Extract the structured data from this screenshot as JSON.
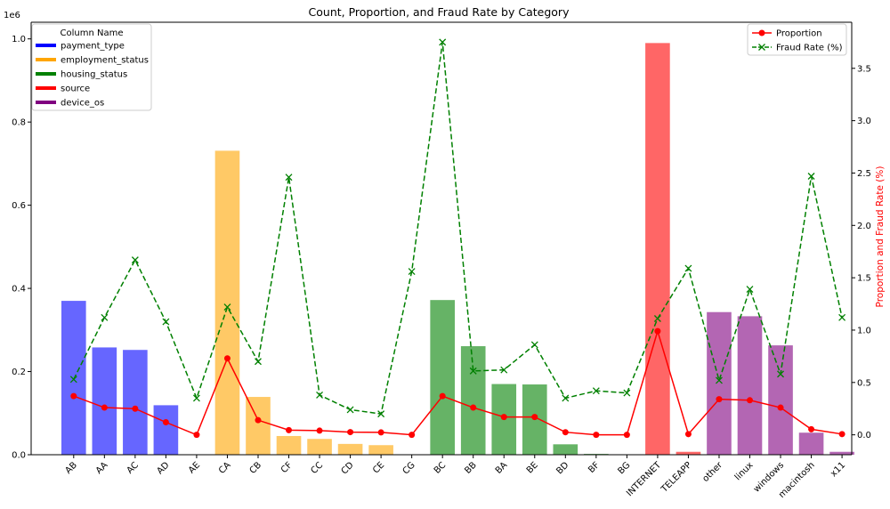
{
  "chart_data": {
    "type": "bar",
    "title": "Count, Proportion, and Fraud Rate by Category",
    "xlabel": "",
    "ylabel": "",
    "y2label": "Proportion and Fraud Rate (%)",
    "y_multiplier_label": "1e6",
    "ylim": [
      0,
      1.04
    ],
    "y_ticks": [
      0.0,
      0.2,
      0.4,
      0.6,
      0.8,
      1.0
    ],
    "y2lim": [
      -0.19,
      3.94
    ],
    "y2_ticks": [
      0.0,
      0.5,
      1.0,
      1.5,
      2.0,
      2.5,
      3.0,
      3.5
    ],
    "categories": [
      "AB",
      "AA",
      "AC",
      "AD",
      "AE",
      "CA",
      "CB",
      "CF",
      "CC",
      "CD",
      "CE",
      "CG",
      "BC",
      "BB",
      "BA",
      "BE",
      "BD",
      "BF",
      "BG",
      "INTERNET",
      "TELEAPP",
      "other",
      "linux",
      "windows",
      "macintosh",
      "x11"
    ],
    "bar_groups": [
      0,
      0,
      0,
      0,
      0,
      1,
      1,
      1,
      1,
      1,
      1,
      1,
      2,
      2,
      2,
      2,
      2,
      2,
      2,
      3,
      3,
      4,
      4,
      4,
      4,
      4
    ],
    "counts": [
      0.37,
      0.258,
      0.252,
      0.119,
      0.0,
      0.731,
      0.139,
      0.045,
      0.038,
      0.026,
      0.023,
      0.001,
      0.372,
      0.261,
      0.17,
      0.169,
      0.025,
      0.002,
      0.0,
      0.99,
      0.007,
      0.343,
      0.333,
      0.263,
      0.053,
      0.007
    ],
    "legend_bars": {
      "title": "Column Name",
      "entries": [
        {
          "name": "payment_type",
          "color": "#0000ff"
        },
        {
          "name": "employment_status",
          "color": "#ffa500"
        },
        {
          "name": "housing_status",
          "color": "#008000"
        },
        {
          "name": "source",
          "color": "#ff0000"
        },
        {
          "name": "device_os",
          "color": "#800080"
        }
      ],
      "placement": "top-left"
    },
    "series": [
      {
        "name": "Proportion",
        "color": "#ff0000",
        "style": "solid",
        "marker": "circle",
        "values": [
          0.37,
          0.26,
          0.25,
          0.12,
          0.0,
          0.73,
          0.14,
          0.045,
          0.04,
          0.026,
          0.023,
          0.0,
          0.37,
          0.26,
          0.17,
          0.17,
          0.025,
          0.0,
          0.0,
          0.99,
          0.007,
          0.34,
          0.33,
          0.26,
          0.053,
          0.007
        ]
      },
      {
        "name": "Fraud Rate (%)",
        "color": "#008000",
        "style": "dashed",
        "marker": "x",
        "values": [
          0.53,
          1.12,
          1.67,
          1.08,
          0.35,
          1.22,
          0.7,
          2.46,
          0.38,
          0.24,
          0.2,
          1.56,
          3.75,
          0.61,
          0.62,
          0.86,
          0.35,
          0.42,
          0.4,
          1.11,
          1.59,
          0.52,
          1.39,
          0.58,
          2.47,
          1.12
        ]
      }
    ],
    "legend_lines_placement": "top-right",
    "grid": false
  }
}
